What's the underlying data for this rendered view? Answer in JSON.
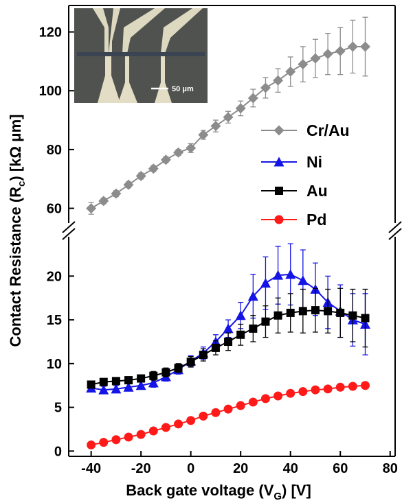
{
  "chart_data": {
    "type": "line",
    "xlabel": {
      "main": "Back gate voltage (V",
      "sub": "G",
      "end": ") [V]"
    },
    "ylabel": {
      "main": "Contact Resistance (R",
      "sub": "c",
      "end": ") [kΩ μm]"
    },
    "inset_scale_label": "50 μm",
    "x": [
      -40,
      -35,
      -30,
      -25,
      -20,
      -15,
      -10,
      -5,
      0,
      5,
      10,
      15,
      20,
      25,
      30,
      35,
      40,
      45,
      50,
      55,
      60,
      65,
      70
    ],
    "xlim": [
      -49,
      82
    ],
    "xticks": [
      -40,
      -20,
      0,
      20,
      40,
      60,
      80
    ],
    "ylim": [
      -0.6,
      24.5
    ],
    "yticks": [
      0,
      5,
      10,
      15,
      20
    ],
    "y2lim": [
      55,
      129
    ],
    "y2ticks": [
      60,
      80,
      100,
      120
    ],
    "legend": "right",
    "series": [
      {
        "name": "Cr/Au",
        "color": "#8c8c8c",
        "marker": "diamond",
        "axis": "y2",
        "values": [
          60,
          62.5,
          65,
          68,
          71,
          73.5,
          76.5,
          79,
          80.5,
          85,
          88,
          91,
          94,
          97.5,
          101,
          103.5,
          106.5,
          109,
          111,
          112.5,
          113.5,
          115,
          115
        ],
        "errors": [
          2,
          1,
          1,
          1,
          1,
          1,
          1,
          1,
          1.5,
          1.5,
          2,
          2,
          2.5,
          3,
          3.5,
          4,
          5,
          6,
          6.5,
          7,
          8,
          9,
          10
        ]
      },
      {
        "name": "Ni",
        "color": "#1414e6",
        "marker": "triangle",
        "values": [
          7.2,
          7,
          7.1,
          7.3,
          7.5,
          7.8,
          8.5,
          9.3,
          10.3,
          11.2,
          12.5,
          14,
          15.5,
          17.7,
          19.2,
          20.1,
          20.2,
          19.5,
          18.5,
          17,
          16,
          15,
          14.5
        ],
        "errors": [
          0.4,
          0.4,
          0.4,
          0.4,
          0.4,
          0.5,
          0.5,
          0.5,
          0.6,
          0.7,
          0.8,
          1,
          1.5,
          2.5,
          3,
          3.3,
          3.5,
          3.5,
          3,
          3,
          3,
          3,
          3.5
        ]
      },
      {
        "name": "Au",
        "color": "#000000",
        "marker": "square",
        "values": [
          7.6,
          7.9,
          8,
          8.1,
          8.3,
          8.6,
          9,
          9.5,
          10.2,
          11,
          11.8,
          12.5,
          13.3,
          14,
          14.8,
          15.5,
          15.8,
          16,
          16.1,
          16,
          15.8,
          15.5,
          15.2
        ],
        "errors": [
          0.3,
          0.3,
          0.3,
          0.3,
          0.4,
          0.5,
          0.5,
          0.5,
          0.6,
          0.7,
          0.8,
          1,
          1.2,
          1.5,
          1.8,
          2,
          2.2,
          2.5,
          2.5,
          2.5,
          2.8,
          3,
          3.3
        ]
      },
      {
        "name": "Pd",
        "color": "#ff1a1a",
        "marker": "circle",
        "values": [
          0.7,
          1,
          1.3,
          1.6,
          1.9,
          2.3,
          2.7,
          3.1,
          3.5,
          4,
          4.4,
          4.8,
          5.2,
          5.6,
          6,
          6.3,
          6.6,
          6.8,
          7,
          7.1,
          7.3,
          7.4,
          7.5
        ],
        "errors": [
          0.3,
          0.3,
          0.3,
          0.3,
          0.3,
          0.3,
          0.3,
          0.3,
          0.3,
          0.3,
          0.3,
          0.3,
          0.3,
          0.3,
          0.3,
          0.3,
          0.3,
          0.3,
          0.3,
          0.3,
          0.3,
          0.3,
          0.3
        ]
      }
    ]
  }
}
